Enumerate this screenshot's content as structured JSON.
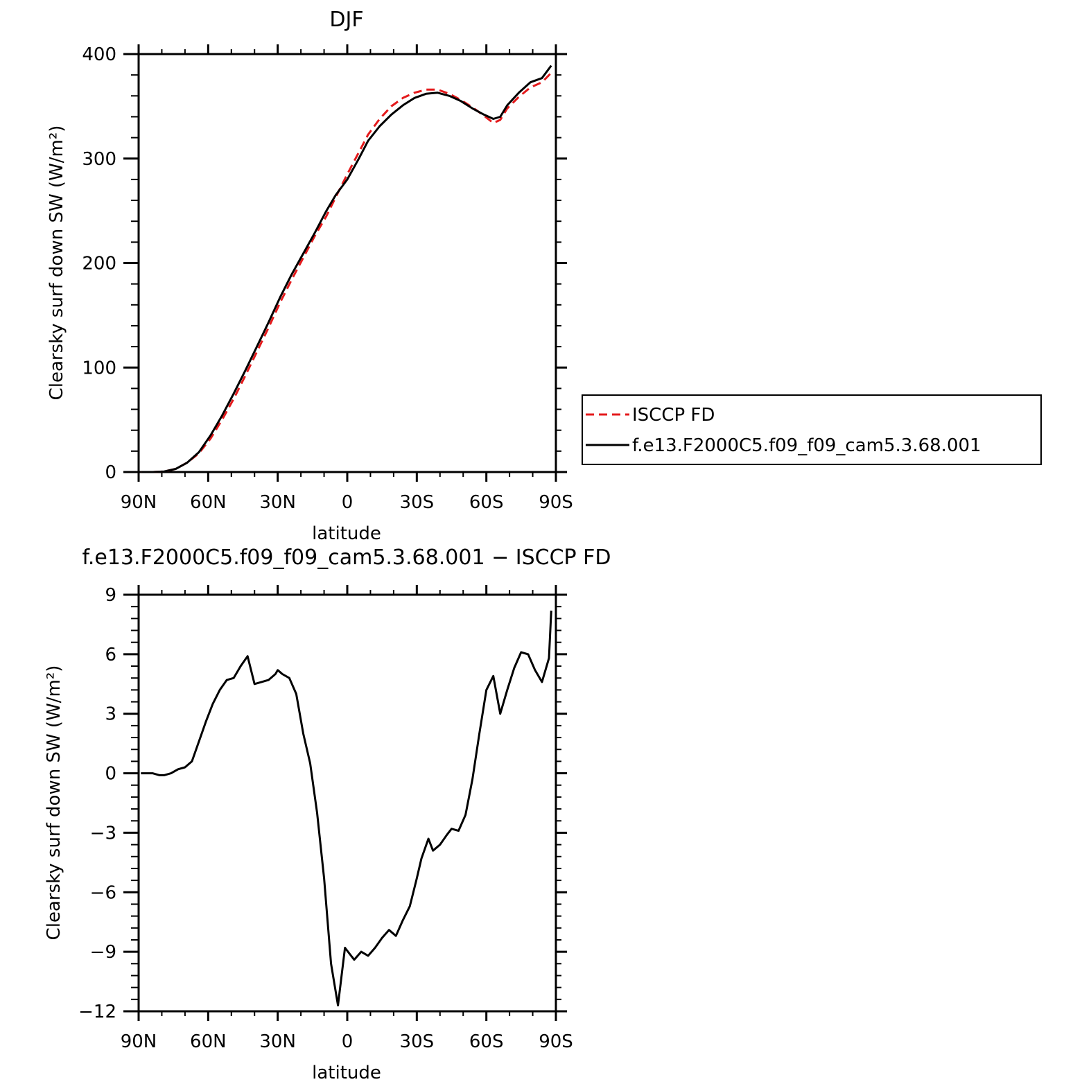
{
  "chart_data": [
    {
      "type": "line",
      "title": "DJF",
      "xlabel": "latitude",
      "ylabel": "Clearsky surf down SW (W/m²)",
      "xlim": [
        90,
        -90
      ],
      "ylim": [
        0,
        400
      ],
      "x_ticks": [
        90,
        60,
        30,
        0,
        -30,
        -60,
        -90
      ],
      "x_tick_labels": [
        "90N",
        "60N",
        "30N",
        "0",
        "30S",
        "60S",
        "90S"
      ],
      "y_ticks": [
        0,
        100,
        200,
        300,
        400
      ],
      "y_tick_labels": [
        "0",
        "100",
        "200",
        "300",
        "400"
      ],
      "legend": "right",
      "x": [
        89,
        84,
        79,
        74,
        69,
        64,
        59,
        54,
        49,
        44,
        39,
        34,
        29,
        24,
        19,
        14,
        9,
        5,
        0,
        -5,
        -9,
        -14,
        -19,
        -24,
        -29,
        -34,
        -39,
        -44,
        -49,
        -54,
        -59,
        -63,
        -66,
        -69,
        -74,
        -79,
        -84,
        -88
      ],
      "series": [
        {
          "name": "ISCCP FD",
          "color": "#e41a1c",
          "style": "dashed",
          "values": [
            0,
            0,
            0.5,
            3,
            9,
            18,
            32,
            50,
            70,
            92,
            115,
            138,
            162,
            184,
            205,
            226,
            245,
            263,
            285,
            306,
            323,
            338,
            350,
            358,
            363,
            366,
            366,
            362,
            356,
            349,
            341,
            334,
            337,
            348,
            359,
            368,
            373,
            382
          ]
        },
        {
          "name": "f.e13.F2000C5.f09_f09_cam5.3.68.001",
          "color": "#000000",
          "style": "solid",
          "values": [
            0,
            0,
            0.5,
            3,
            9,
            19,
            35,
            54,
            75,
            97,
            120,
            143,
            167,
            189,
            209,
            229,
            250,
            265,
            280,
            300,
            317,
            331,
            342,
            351,
            358,
            362,
            363,
            360,
            355,
            348,
            342,
            338,
            340,
            351,
            363,
            373,
            377,
            389
          ]
        }
      ]
    },
    {
      "type": "line",
      "title": "f.e13.F2000C5.f09_f09_cam5.3.68.001 − ISCCP FD",
      "xlabel": "latitude",
      "ylabel": "Clearsky surf down SW (W/m²)",
      "xlim": [
        90,
        -90
      ],
      "ylim": [
        -12,
        9
      ],
      "x_ticks": [
        90,
        60,
        30,
        0,
        -30,
        -60,
        -90
      ],
      "x_tick_labels": [
        "90N",
        "60N",
        "30N",
        "0",
        "30S",
        "60S",
        "90S"
      ],
      "y_ticks": [
        9,
        6,
        3,
        0,
        -3,
        -6,
        -9,
        -12
      ],
      "y_tick_labels": [
        "9",
        "6",
        "3",
        "0",
        "−3",
        "−6",
        "−9",
        "−12"
      ],
      "x": [
        89,
        84,
        81,
        79,
        76,
        73,
        70,
        67,
        64,
        61,
        58,
        55,
        52,
        49,
        46,
        43,
        40,
        37,
        34,
        31,
        30,
        28,
        25,
        22,
        19,
        16,
        13,
        10,
        7,
        4,
        1,
        -1,
        -3,
        -6,
        -9,
        -12,
        -15,
        -18,
        -21,
        -24,
        -27,
        -30,
        -32,
        -35,
        -37,
        -40,
        -43,
        -45,
        -48,
        -51,
        -54,
        -57,
        -60,
        -63,
        -66,
        -69,
        -72,
        -75,
        -78,
        -81,
        -84,
        -87,
        -88
      ],
      "values": [
        0,
        0,
        -0.1,
        -0.1,
        0,
        0.2,
        0.3,
        0.6,
        1.6,
        2.6,
        3.5,
        4.2,
        4.7,
        4.8,
        5.4,
        5.9,
        4.5,
        4.6,
        4.7,
        5.0,
        5.2,
        5.0,
        4.8,
        4.0,
        2.0,
        0.5,
        -2.0,
        -5.3,
        -9.6,
        -11.7,
        -8.8,
        -9.1,
        -9.4,
        -9.0,
        -9.2,
        -8.8,
        -8.3,
        -7.9,
        -8.2,
        -7.4,
        -6.7,
        -5.3,
        -4.3,
        -3.3,
        -3.9,
        -3.6,
        -3.1,
        -2.8,
        -2.9,
        -2.1,
        -0.3,
        2.0,
        4.2,
        4.9,
        3.0,
        4.2,
        5.3,
        6.1,
        6.0,
        5.2,
        4.6,
        5.8,
        8.2
      ]
    }
  ]
}
